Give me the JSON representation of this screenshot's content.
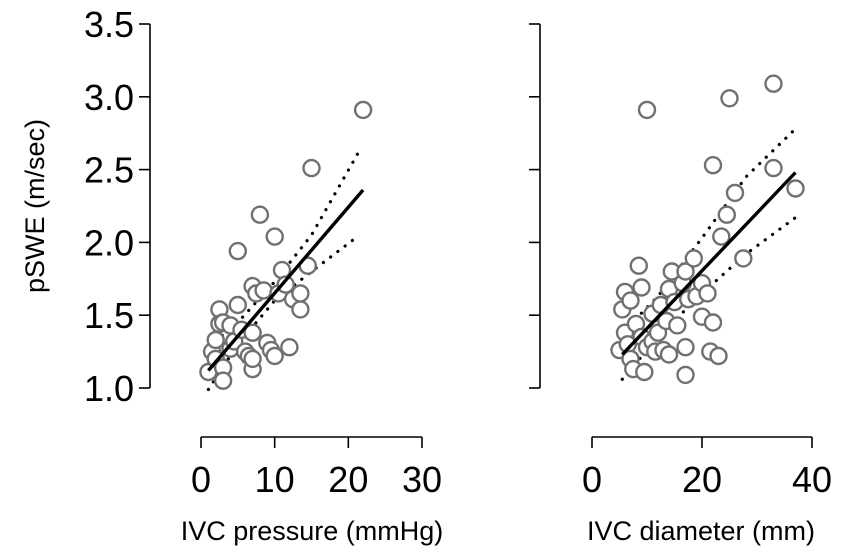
{
  "chart_data": [
    {
      "type": "scatter",
      "ylabel": "pSWE (m/sec)",
      "xlabel": "IVC pressure (mmHg)",
      "xlim": [
        0,
        30
      ],
      "ylim": [
        1.0,
        3.5
      ],
      "x_ticks": [
        "0",
        "10",
        "20",
        "30"
      ],
      "x_tick_values": [
        0,
        10,
        20,
        30
      ],
      "y_ticks": [
        "1.0",
        "1.5",
        "2.0",
        "2.5",
        "3.0",
        "3.5"
      ],
      "y_tick_values": [
        1.0,
        1.5,
        2.0,
        2.5,
        3.0,
        3.5
      ],
      "points": [
        [
          1,
          1.11
        ],
        [
          1.5,
          1.25
        ],
        [
          2,
          1.33
        ],
        [
          2,
          1.2
        ],
        [
          2.5,
          1.54
        ],
        [
          2.5,
          1.44
        ],
        [
          3,
          1.14
        ],
        [
          3,
          1.05
        ],
        [
          3,
          1.45
        ],
        [
          4,
          1.27
        ],
        [
          4,
          1.43
        ],
        [
          4.5,
          1.32
        ],
        [
          5,
          1.57
        ],
        [
          5,
          1.94
        ],
        [
          5.5,
          1.4
        ],
        [
          6,
          1.25
        ],
        [
          6.5,
          1.22
        ],
        [
          7,
          1.7
        ],
        [
          7,
          1.38
        ],
        [
          7,
          1.13
        ],
        [
          7,
          1.2
        ],
        [
          7.5,
          1.65
        ],
        [
          8,
          2.19
        ],
        [
          8.5,
          1.67
        ],
        [
          9,
          1.31
        ],
        [
          9.5,
          1.26
        ],
        [
          10,
          2.04
        ],
        [
          10,
          1.22
        ],
        [
          10.5,
          1.65
        ],
        [
          11,
          1.81
        ],
        [
          11.5,
          1.71
        ],
        [
          12,
          1.28
        ],
        [
          12.5,
          1.61
        ],
        [
          13.5,
          1.54
        ],
        [
          13.5,
          1.65
        ],
        [
          14.5,
          1.84
        ],
        [
          15,
          2.51
        ],
        [
          22,
          2.91
        ]
      ],
      "fit_line": {
        "x": [
          1,
          22
        ],
        "y": [
          1.12,
          2.36
        ]
      },
      "ci_upper": {
        "x": [
          1,
          5,
          10,
          15,
          21.5
        ],
        "y": [
          1.28,
          1.45,
          1.73,
          2.05,
          2.63
        ]
      },
      "ci_lower": {
        "x": [
          1,
          5,
          10,
          15,
          21.5
        ],
        "y": [
          0.99,
          1.3,
          1.6,
          1.8,
          2.05
        ]
      }
    },
    {
      "type": "scatter",
      "ylabel": "",
      "xlabel": "IVC diameter (mm)",
      "xlim": [
        0,
        40
      ],
      "ylim": [
        1.0,
        3.5
      ],
      "x_ticks": [
        "0",
        "20",
        "40"
      ],
      "x_tick_values": [
        0,
        20,
        40
      ],
      "y_ticks": [],
      "y_tick_values": [
        1.0,
        1.5,
        2.0,
        2.5,
        3.0,
        3.5
      ],
      "points": [
        [
          5,
          1.26
        ],
        [
          5.5,
          1.54
        ],
        [
          6,
          1.38
        ],
        [
          6,
          1.66
        ],
        [
          6.5,
          1.3
        ],
        [
          7,
          1.2
        ],
        [
          7,
          1.6
        ],
        [
          7.5,
          1.13
        ],
        [
          8,
          1.44
        ],
        [
          8.5,
          1.84
        ],
        [
          9,
          1.69
        ],
        [
          9,
          1.35
        ],
        [
          9.5,
          1.11
        ],
        [
          10,
          2.91
        ],
        [
          10,
          1.28
        ],
        [
          11,
          1.51
        ],
        [
          11,
          1.32
        ],
        [
          11.5,
          1.25
        ],
        [
          12,
          1.38
        ],
        [
          12.5,
          1.57
        ],
        [
          13,
          1.26
        ],
        [
          13.5,
          1.46
        ],
        [
          14,
          1.23
        ],
        [
          14,
          1.68
        ],
        [
          14.5,
          1.8
        ],
        [
          15,
          1.59
        ],
        [
          15.5,
          1.43
        ],
        [
          16.5,
          1.72
        ],
        [
          17,
          1.28
        ],
        [
          17,
          1.8
        ],
        [
          17,
          1.09
        ],
        [
          17.5,
          1.61
        ],
        [
          18.5,
          1.89
        ],
        [
          19,
          1.63
        ],
        [
          20,
          1.72
        ],
        [
          20,
          1.49
        ],
        [
          21,
          1.65
        ],
        [
          21.5,
          1.25
        ],
        [
          22,
          2.53
        ],
        [
          22,
          1.45
        ],
        [
          23,
          1.22
        ],
        [
          23.5,
          2.04
        ],
        [
          24.5,
          2.19
        ],
        [
          25,
          2.99
        ],
        [
          26,
          2.34
        ],
        [
          27.5,
          1.89
        ],
        [
          33,
          3.09
        ],
        [
          33,
          2.51
        ],
        [
          37,
          2.37
        ]
      ],
      "fit_line": {
        "x": [
          5.5,
          37
        ],
        "y": [
          1.23,
          2.48
        ]
      },
      "ci_upper": {
        "x": [
          5.5,
          12,
          20,
          28,
          37
        ],
        "y": [
          1.38,
          1.63,
          2.03,
          2.45,
          2.78
        ]
      },
      "ci_lower": {
        "x": [
          5.5,
          12,
          20,
          28,
          37
        ],
        "y": [
          1.06,
          1.35,
          1.65,
          1.92,
          2.17
        ]
      }
    }
  ]
}
